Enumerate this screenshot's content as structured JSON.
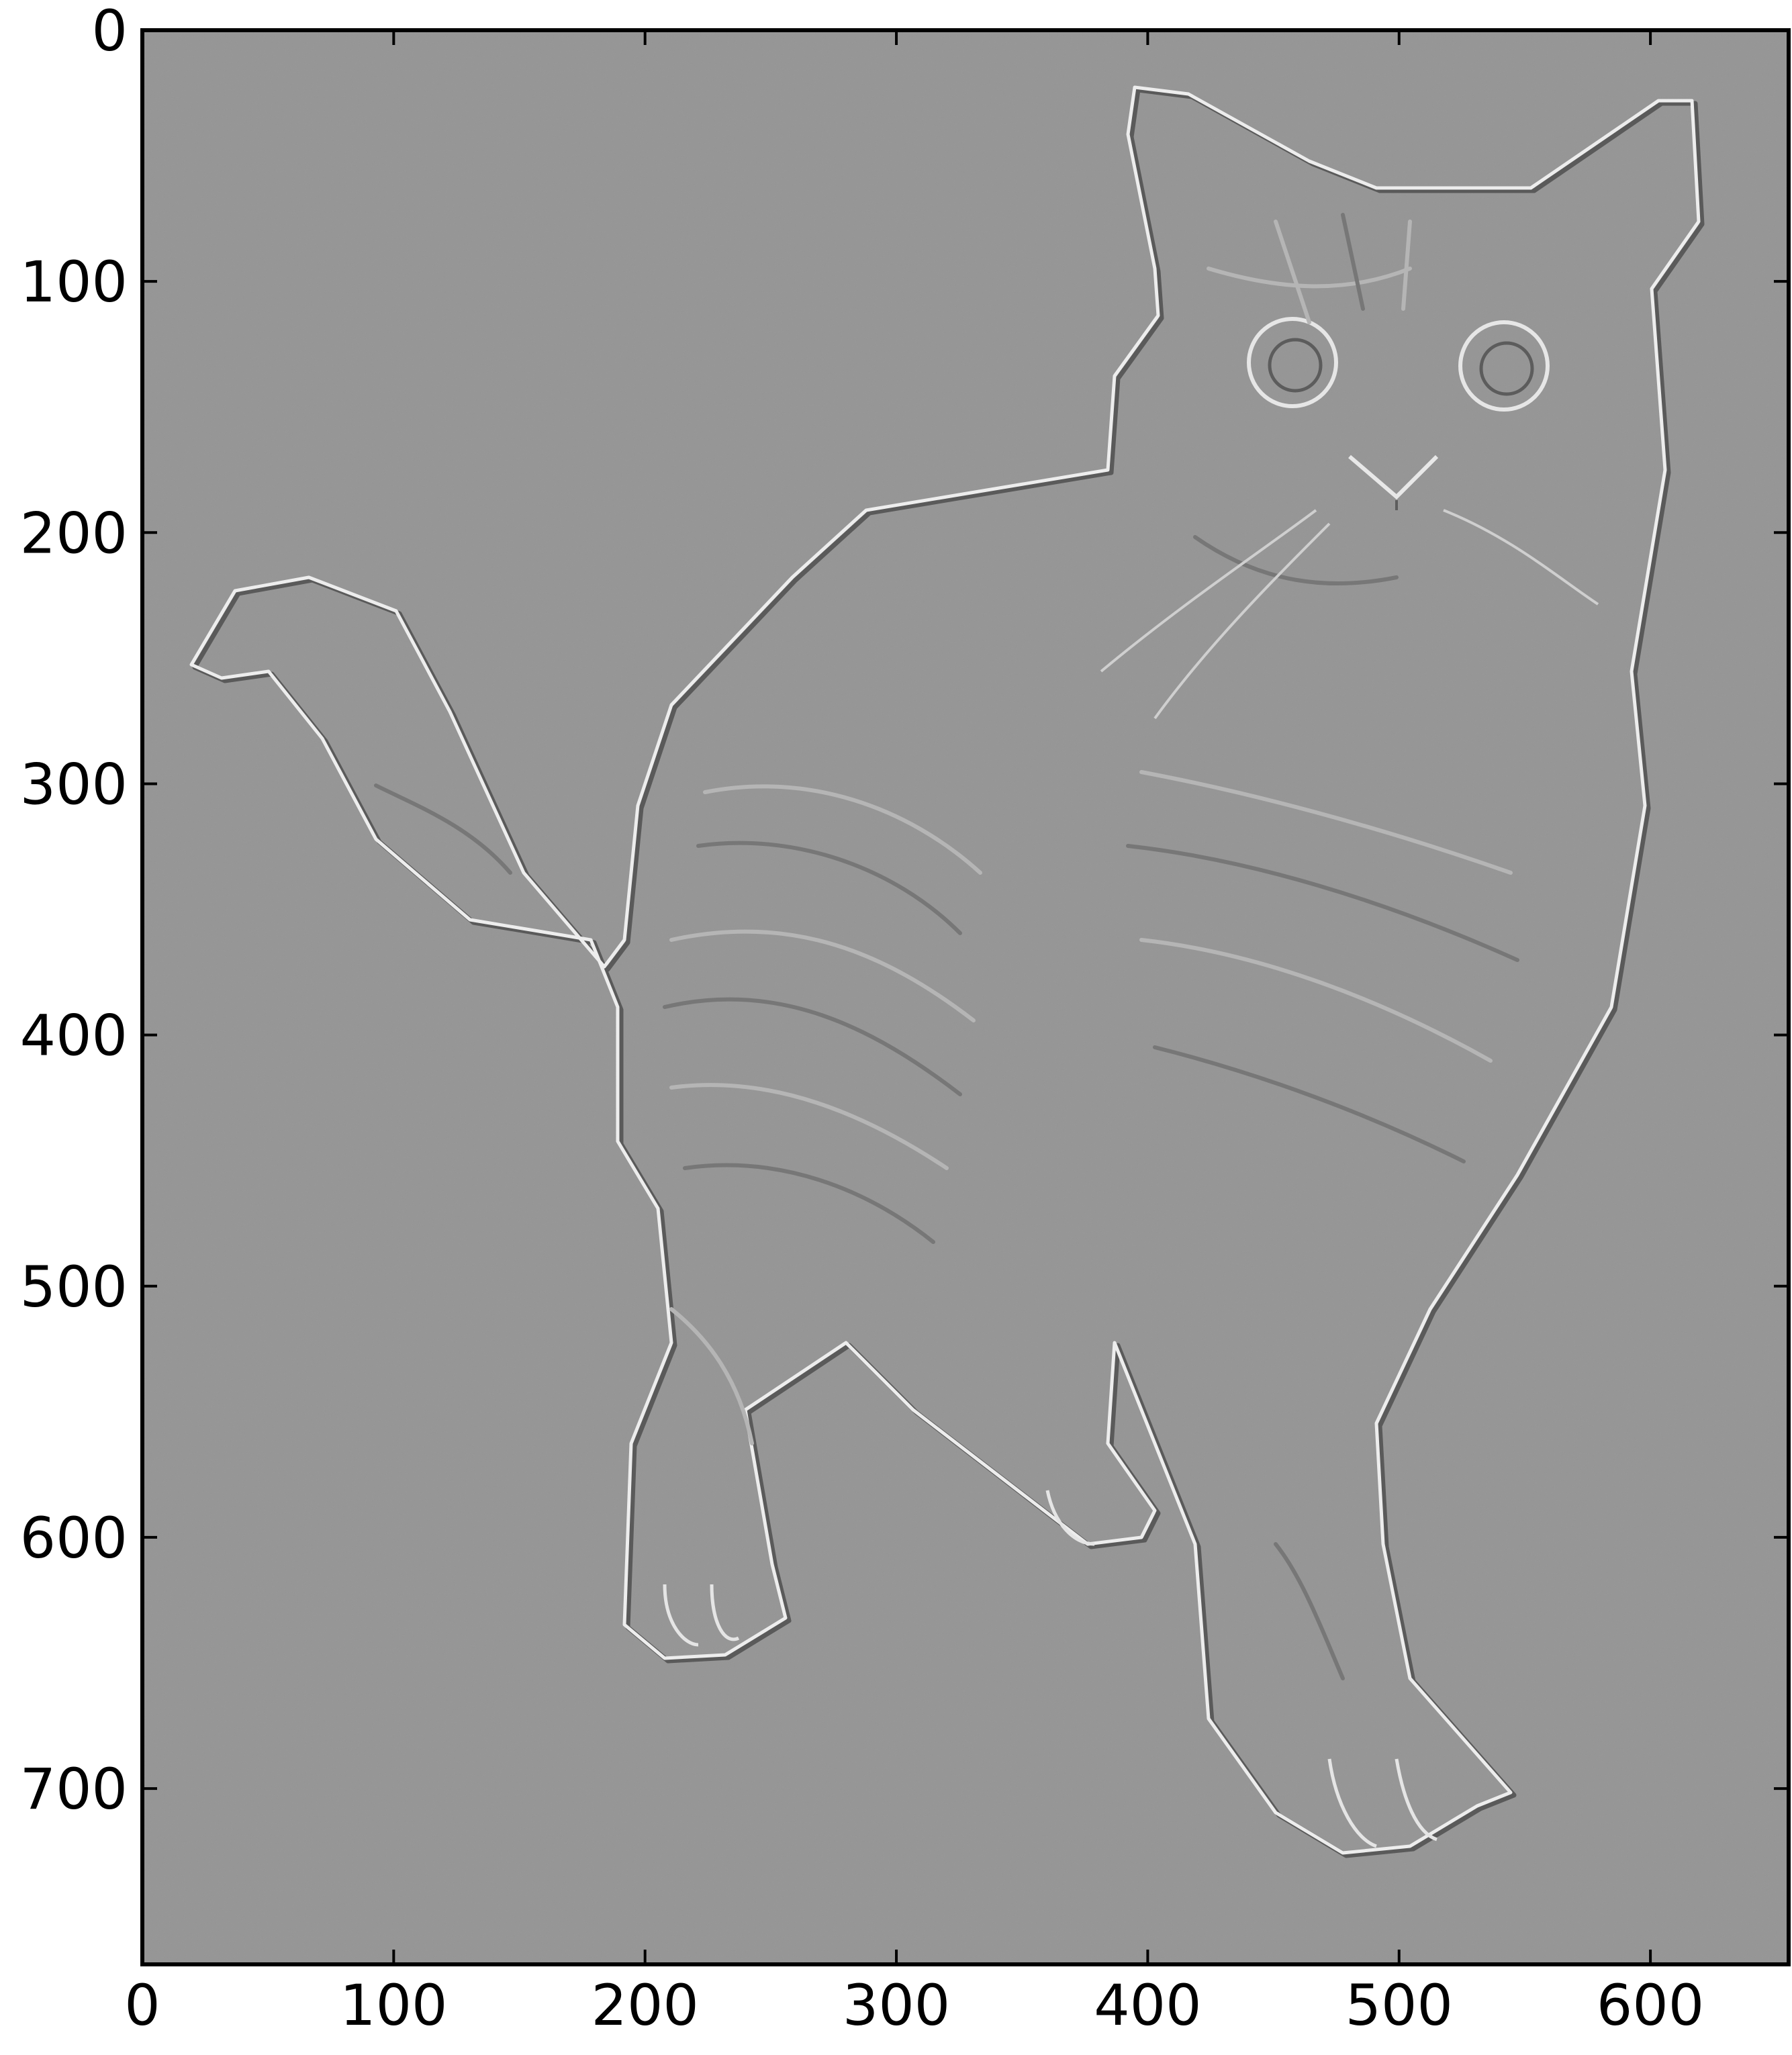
{
  "figure": {
    "image": {
      "description_free": true,
      "background_gray": "#959595",
      "highlight": "#f2f2f2",
      "shadow": "#333333"
    },
    "x_axis": {
      "range": [
        0,
        655
      ],
      "ticks": [
        0,
        100,
        200,
        300,
        400,
        500,
        600
      ],
      "tick_labels": [
        "0",
        "100",
        "200",
        "300",
        "400",
        "500",
        "600"
      ]
    },
    "y_axis": {
      "range": [
        0,
        770
      ],
      "inverted": true,
      "ticks": [
        0,
        100,
        200,
        300,
        400,
        500,
        600,
        700
      ],
      "tick_labels": [
        "0",
        "100",
        "200",
        "300",
        "400",
        "500",
        "600",
        "700"
      ]
    }
  }
}
